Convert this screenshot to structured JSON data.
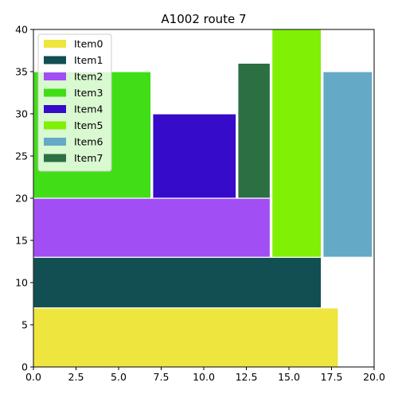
{
  "chart_data": {
    "type": "bar",
    "title": "A1002 route 7",
    "xlabel": "",
    "ylabel": "",
    "xlim": [
      0,
      20
    ],
    "ylim": [
      0,
      40
    ],
    "xticks": [
      "0.0",
      "2.5",
      "5.0",
      "7.5",
      "10.0",
      "12.5",
      "15.0",
      "17.5",
      "20.0"
    ],
    "yticks": [
      "0",
      "5",
      "10",
      "15",
      "20",
      "25",
      "30",
      "35",
      "40"
    ],
    "legend_position": "top-left",
    "grid": false,
    "items": [
      {
        "name": "Item0",
        "x0": 0,
        "x1": 17.9,
        "y0": 0,
        "y1": 7,
        "color": "#efe53f"
      },
      {
        "name": "Item1",
        "x0": 0,
        "x1": 16.9,
        "y0": 7,
        "y1": 13,
        "color": "#114f53"
      },
      {
        "name": "Item2",
        "x0": 0,
        "x1": 13.9,
        "y0": 13,
        "y1": 20,
        "color": "#a14ef5"
      },
      {
        "name": "Item3",
        "x0": 0,
        "x1": 6.9,
        "y0": 20,
        "y1": 35,
        "color": "#41de17"
      },
      {
        "name": "Item4",
        "x0": 7,
        "x1": 11.9,
        "y0": 20,
        "y1": 30,
        "color": "#370bca"
      },
      {
        "name": "Item5",
        "x0": 14,
        "x1": 16.9,
        "y0": 13,
        "y1": 40,
        "color": "#80f004"
      },
      {
        "name": "Item6",
        "x0": 17,
        "x1": 19.9,
        "y0": 13,
        "y1": 35,
        "color": "#64a9c5"
      },
      {
        "name": "Item7",
        "x0": 12,
        "x1": 13.9,
        "y0": 20,
        "y1": 36,
        "color": "#2c6f43"
      }
    ]
  }
}
